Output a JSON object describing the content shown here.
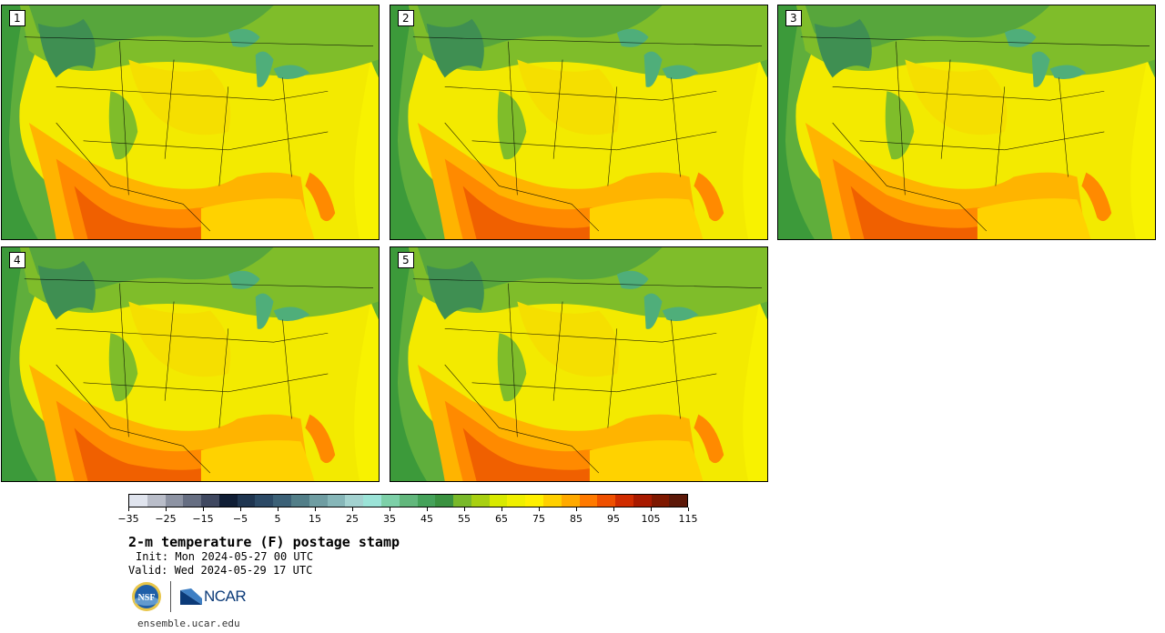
{
  "panels": [
    {
      "label": "1"
    },
    {
      "label": "2"
    },
    {
      "label": "3"
    },
    {
      "label": "4"
    },
    {
      "label": "5"
    }
  ],
  "colorbar": {
    "colors": [
      "#e0e4ee",
      "#b9bdc9",
      "#8d93a3",
      "#666e82",
      "#3f4860",
      "#101e35",
      "#1f3550",
      "#2c4a66",
      "#3c6177",
      "#527e88",
      "#6f9da2",
      "#86b6b8",
      "#a3d2d0",
      "#9be3d7",
      "#7dd0a8",
      "#62b77c",
      "#45a25a",
      "#3a9240",
      "#79b92a",
      "#a8d012",
      "#d8ea00",
      "#f0f000",
      "#fff000",
      "#ffd000",
      "#ffaa00",
      "#ff7a00",
      "#ef5000",
      "#d02c00",
      "#a81a00",
      "#7e1800",
      "#5c1808"
    ],
    "tick_labels": [
      "−35",
      "−25",
      "−15",
      "−5",
      "5",
      "15",
      "25",
      "35",
      "45",
      "55",
      "65",
      "75",
      "85",
      "95",
      "105",
      "115"
    ]
  },
  "title": "2-m temperature (F) postage stamp",
  "init": "Init: Mon 2024-05-27 00 UTC",
  "valid": "Valid: Wed 2024-05-29 17 UTC",
  "logos": {
    "nsf_text": "NSF",
    "ncar_text": "NCAR"
  },
  "site": "ensemble.ucar.edu"
}
